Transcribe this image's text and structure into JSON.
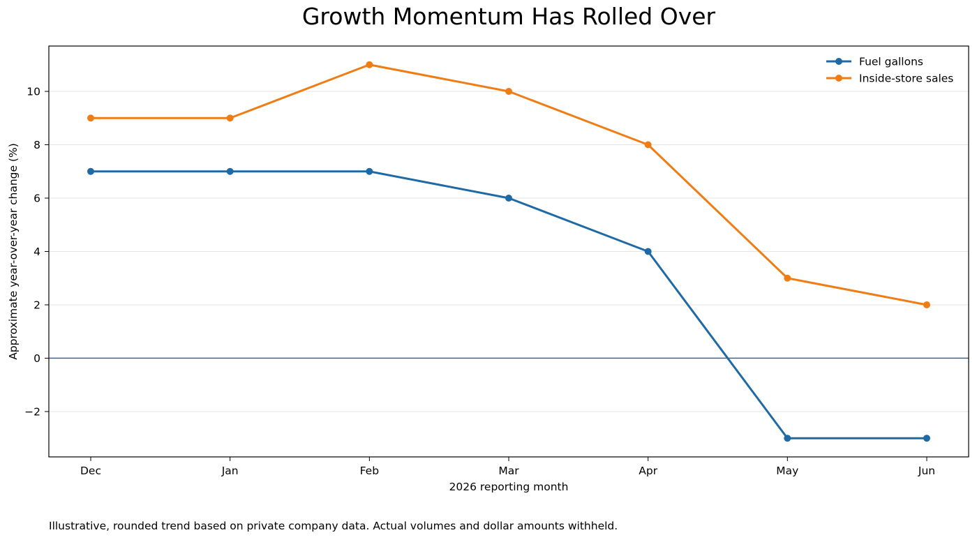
{
  "chart_data": {
    "type": "line",
    "title": "Growth Momentum Has Rolled Over",
    "xlabel": "2026 reporting month",
    "ylabel": "Approximate year-over-year change (%)",
    "categories": [
      "Dec",
      "Jan",
      "Feb",
      "Mar",
      "Apr",
      "May",
      "Jun"
    ],
    "ylim": [
      -3.7,
      11.7
    ],
    "yticks": [
      -2,
      0,
      2,
      4,
      6,
      8,
      10
    ],
    "ytick_labels": [
      "−2",
      "0",
      "2",
      "4",
      "6",
      "8",
      "10"
    ],
    "grid": "horizontal",
    "reference_line": 0,
    "legend_position": "top-right",
    "series": [
      {
        "name": "Fuel gallons",
        "color": "#1f6aa5",
        "values": [
          7,
          7,
          7,
          6,
          4,
          -3,
          -3
        ]
      },
      {
        "name": "Inside-store sales",
        "color": "#f07c14",
        "values": [
          9,
          9,
          11,
          10,
          8,
          3,
          2
        ]
      }
    ],
    "zero_line_color": "#1f5f86"
  },
  "footnote": "Illustrative, rounded trend based on private company data. Actual volumes and dollar amounts withheld."
}
